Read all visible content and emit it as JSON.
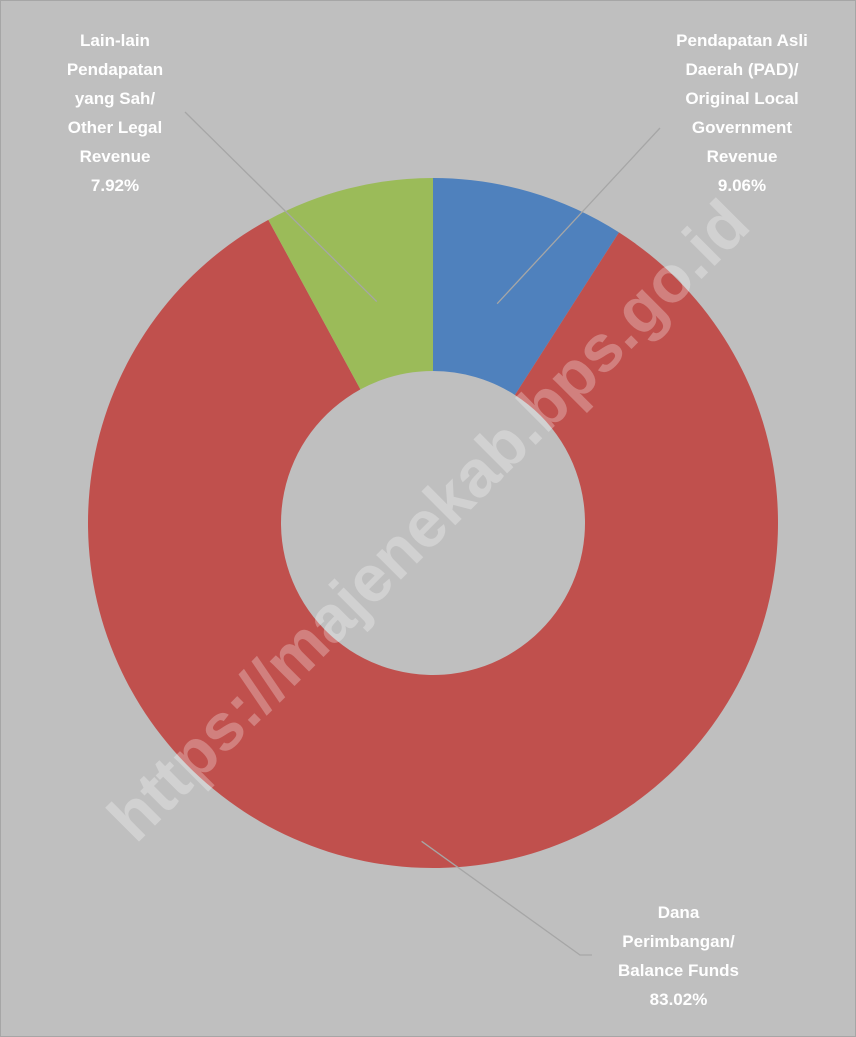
{
  "chart_data": {
    "type": "donut",
    "categories": [
      "Pendapatan Asli Daerah (PAD)/ Original Local Government Revenue",
      "Dana Perimbangan/ Balance Funds",
      "Lain-lain Pendapatan yang Sah/ Other Legal Revenue"
    ],
    "values": [
      9.06,
      83.02,
      7.92
    ],
    "value_labels": [
      "9.06%",
      "83.02%",
      "7.92%"
    ],
    "colors": [
      "#4f81bd",
      "#c0504d",
      "#9bbb59"
    ],
    "watermark": "https://majenekab.bps.go.id"
  }
}
